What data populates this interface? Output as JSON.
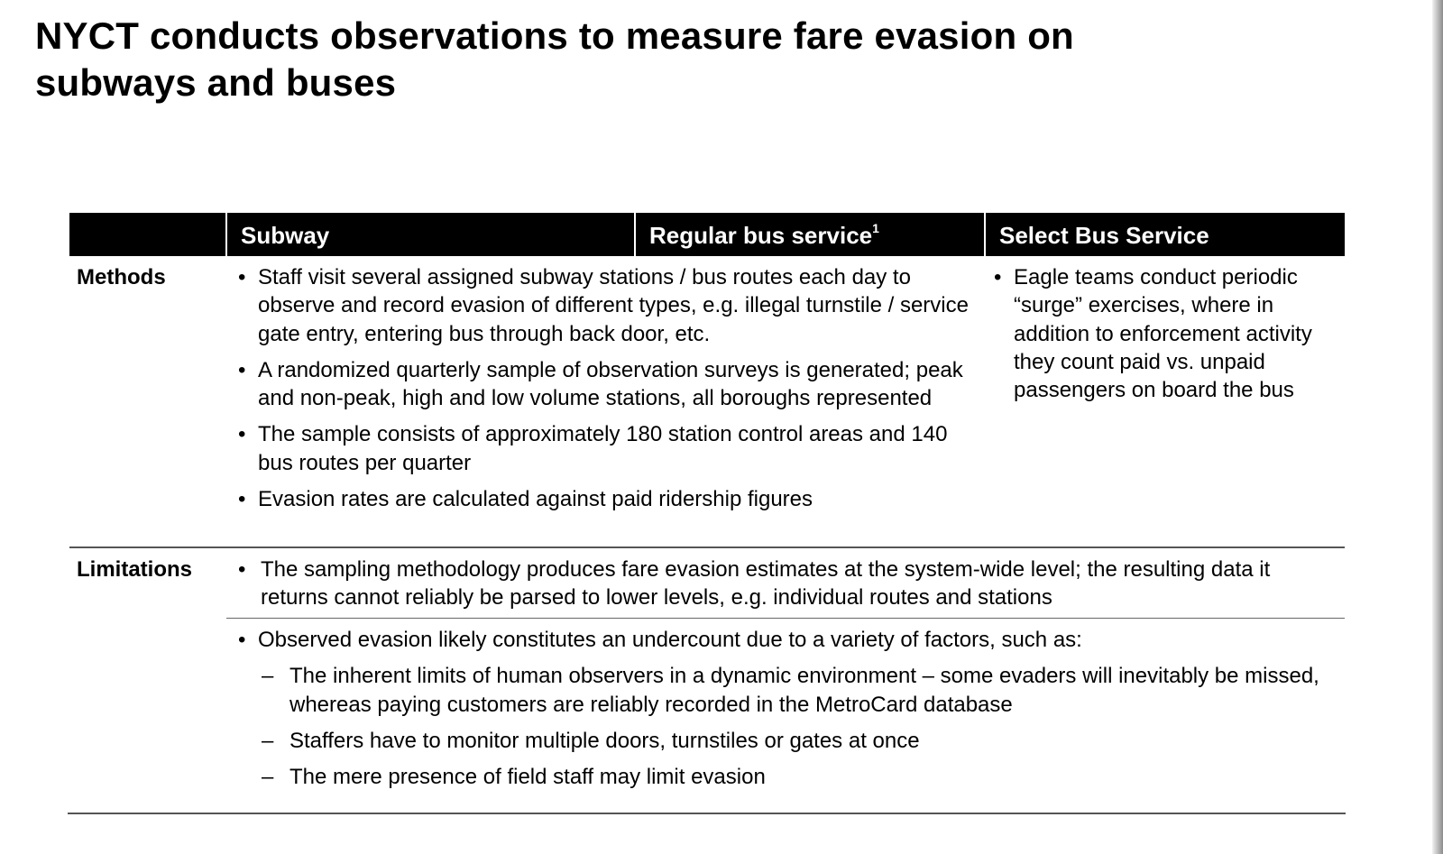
{
  "title": {
    "line1": "NYCT conducts observations to measure fare evasion on",
    "line2": "subways and buses"
  },
  "table": {
    "headers": {
      "subway": "Subway",
      "regular_bus": "Regular bus service",
      "regular_bus_footnote": "1",
      "select_bus": "Select Bus Service"
    },
    "methods": {
      "label": "Methods",
      "bullets": [
        "Staff visit several assigned subway stations / bus routes each day to observe and record evasion of different types, e.g. illegal turnstile / service gate entry, entering bus through back door, etc.",
        "A randomized quarterly sample of observation surveys is generated; peak and non-peak, high and low volume stations, all boroughs represented",
        "The sample consists of approximately 180 station control areas and 140 bus routes per quarter",
        "Evasion rates are calculated against paid ridership figures"
      ],
      "sbs_bullet": "Eagle teams conduct periodic “surge” exercises, where in addition to enforcement activity they count paid vs. unpaid passengers on board the bus"
    },
    "limitations": {
      "label": "Limitations",
      "bullet1": "The sampling methodology produces fare evasion estimates at the system-wide level; the resulting data it returns cannot reliably be parsed to lower levels, e.g. individual routes and stations",
      "bullet2": "Observed evasion likely constitutes an undercount due to a variety of factors, such as:",
      "sub_bullets": [
        "The inherent limits of human observers in a dynamic environment – some evaders will inevitably be missed, whereas paying customers are reliably recorded in the MetroCard database",
        "Staffers have to monitor multiple doors, turnstiles or gates at once",
        "The mere presence of field staff may limit evasion"
      ]
    }
  }
}
